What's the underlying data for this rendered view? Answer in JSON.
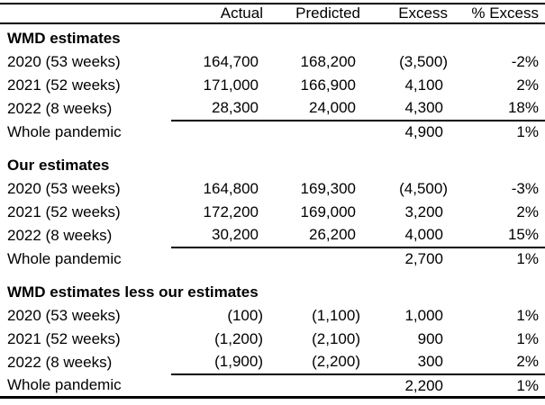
{
  "table": {
    "column_headers": {
      "label": "",
      "actual": "Actual",
      "predicted": "Predicted",
      "excess": "Excess",
      "pct_excess": "% Excess"
    },
    "sections": [
      {
        "title": "WMD estimates",
        "rows": [
          {
            "label": "2020 (53 weeks)",
            "actual": "164,700",
            "predicted": "168,200",
            "excess": "(3,500)",
            "pct_excess": "-2%"
          },
          {
            "label": "2021 (52 weeks)",
            "actual": "171,000",
            "predicted": "166,900",
            "excess": "4,100",
            "pct_excess": "2%"
          },
          {
            "label": "2022 (8 weeks)",
            "actual": "28,300",
            "predicted": "24,000",
            "excess": "4,300",
            "pct_excess": "18%"
          },
          {
            "label": "Whole pandemic",
            "actual": "",
            "predicted": "",
            "excess": "4,900",
            "pct_excess": "1%"
          }
        ]
      },
      {
        "title": "Our estimates",
        "rows": [
          {
            "label": "2020 (53 weeks)",
            "actual": "164,800",
            "predicted": "169,300",
            "excess": "(4,500)",
            "pct_excess": "-3%"
          },
          {
            "label": "2021 (52 weeks)",
            "actual": "172,200",
            "predicted": "169,000",
            "excess": "3,200",
            "pct_excess": "2%"
          },
          {
            "label": "2022 (8 weeks)",
            "actual": "30,200",
            "predicted": "26,200",
            "excess": "4,000",
            "pct_excess": "15%"
          },
          {
            "label": "Whole pandemic",
            "actual": "",
            "predicted": "",
            "excess": "2,700",
            "pct_excess": "1%"
          }
        ]
      },
      {
        "title": "WMD estimates less our estimates",
        "rows": [
          {
            "label": "2020 (53 weeks)",
            "actual": "(100)",
            "predicted": "(1,100)",
            "excess": "1,000",
            "pct_excess": "1%"
          },
          {
            "label": "2021 (52 weeks)",
            "actual": "(1,200)",
            "predicted": "(2,100)",
            "excess": "900",
            "pct_excess": "1%"
          },
          {
            "label": "2022 (8 weeks)",
            "actual": "(1,900)",
            "predicted": "(2,200)",
            "excess": "300",
            "pct_excess": "2%"
          },
          {
            "label": "Whole pandemic",
            "actual": "",
            "predicted": "",
            "excess": "2,200",
            "pct_excess": "1%"
          }
        ]
      }
    ]
  },
  "colors": {
    "text": "#000000",
    "background": "#ffffff",
    "rule": "#000000"
  }
}
